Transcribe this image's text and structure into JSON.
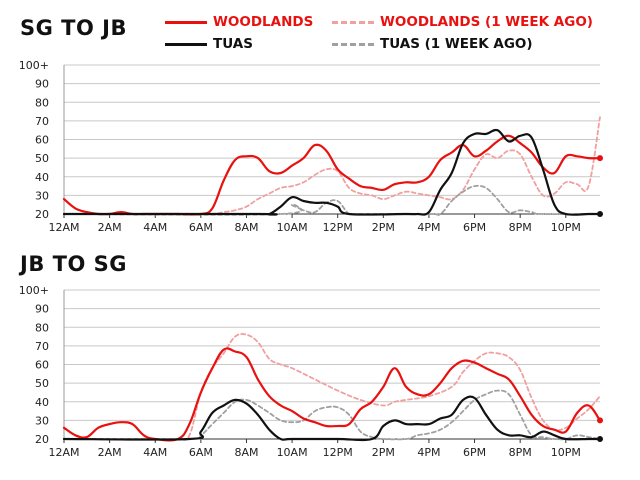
{
  "legend": {
    "woodlands": "WOODLANDS",
    "woodlands_week_ago": "WOODLANDS (1 WEEK AGO)",
    "tuas": "TUAS",
    "tuas_week_ago": "TUAS (1 WEEK AGO)"
  },
  "colors": {
    "woodlands": "#e8110f",
    "woodlands_week_ago": "#f0a0a0",
    "tuas": "#111111",
    "tuas_week_ago": "#a0a0a0",
    "grid": "#c8c8c8"
  },
  "chart_data": [
    {
      "type": "line",
      "title": "SG TO JB",
      "x_categories": [
        "12AM",
        "2AM",
        "4AM",
        "6AM",
        "8AM",
        "10AM",
        "12PM",
        "2PM",
        "4PM",
        "6PM",
        "8PM",
        "10PM"
      ],
      "y_ticks": [
        "20",
        "30",
        "40",
        "50",
        "60",
        "70",
        "80",
        "90",
        "100+"
      ],
      "ylim": [
        20,
        100
      ],
      "xlim": [
        0,
        23.5
      ],
      "series": [
        {
          "name": "WOODLANDS (1 WEEK AGO)",
          "style": "dashed",
          "color": "#f0a0a0",
          "x": [
            0,
            2,
            4,
            6,
            6.5,
            7,
            7.5,
            8,
            8.5,
            9,
            9.5,
            10,
            10.5,
            11,
            11.5,
            12,
            12.5,
            13,
            13.5,
            14,
            14.5,
            15,
            15.5,
            16,
            16.5,
            17,
            17.5,
            18,
            18.5,
            19,
            19.5,
            20,
            20.5,
            21,
            21.5,
            22,
            22.5,
            23,
            23.5
          ],
          "y": [
            20,
            20,
            20,
            20,
            20,
            21,
            22,
            24,
            28,
            31,
            34,
            35,
            37,
            41,
            44,
            43,
            34,
            31,
            30,
            28,
            30,
            32,
            31,
            30,
            29,
            28,
            33,
            44,
            52,
            50,
            54,
            52,
            40,
            30,
            31,
            37,
            36,
            35,
            72
          ]
        },
        {
          "name": "TUAS (1 WEEK AGO)",
          "style": "dashed",
          "color": "#a0a0a0",
          "x": [
            0,
            9.5,
            10,
            10.5,
            11,
            11.5,
            12,
            12.5,
            13,
            16,
            16.5,
            17,
            17.5,
            18,
            18.5,
            19,
            19.5,
            20,
            20.5,
            21,
            23.5
          ],
          "y": [
            20,
            20,
            25,
            22,
            21,
            26,
            27,
            20,
            20,
            20,
            20,
            27,
            32,
            35,
            34,
            28,
            21,
            22,
            21,
            20,
            20
          ]
        },
        {
          "name": "WOODLANDS",
          "style": "solid",
          "color": "#e8110f",
          "x": [
            0,
            0.5,
            1,
            1.5,
            2,
            2.5,
            3,
            3.5,
            4,
            5,
            6,
            6.5,
            7,
            7.5,
            8,
            8.5,
            9,
            9.5,
            10,
            10.5,
            11,
            11.5,
            12,
            12.5,
            13,
            13.5,
            14,
            14.5,
            15,
            15.5,
            16,
            16.5,
            17,
            17.5,
            18,
            18.5,
            19,
            19.5,
            20,
            20.5,
            21,
            21.5,
            22,
            22.5,
            23,
            23.5
          ],
          "y": [
            28,
            23,
            21,
            20,
            20,
            21,
            20,
            20,
            20,
            20,
            20,
            23,
            38,
            49,
            51,
            50,
            43,
            42,
            46,
            50,
            57,
            54,
            44,
            39,
            35,
            34,
            33,
            36,
            37,
            37,
            40,
            49,
            53,
            57,
            51,
            54,
            59,
            62,
            58,
            53,
            45,
            42,
            51,
            51,
            50,
            50
          ]
        },
        {
          "name": "TUAS",
          "style": "solid",
          "color": "#111111",
          "x": [
            0,
            8.5,
            9,
            9.5,
            10,
            10.5,
            11,
            11.5,
            12,
            12.5,
            15,
            15.5,
            16,
            16.5,
            17,
            17.5,
            18,
            18.5,
            19,
            19.5,
            20,
            20.5,
            21,
            21.5,
            22,
            23,
            23.5
          ],
          "y": [
            20,
            20,
            20,
            24,
            29,
            27,
            26,
            26,
            24,
            20,
            20,
            20,
            21,
            33,
            42,
            58,
            63,
            63,
            65,
            59,
            62,
            61,
            44,
            25,
            20,
            20,
            20
          ]
        }
      ]
    },
    {
      "type": "line",
      "title": "JB TO SG",
      "x_categories": [
        "12AM",
        "2AM",
        "4AM",
        "6AM",
        "8AM",
        "10AM",
        "12PM",
        "2PM",
        "4PM",
        "6PM",
        "8PM",
        "10PM"
      ],
      "y_ticks": [
        "20",
        "30",
        "40",
        "50",
        "60",
        "70",
        "80",
        "90",
        "100+"
      ],
      "ylim": [
        20,
        100
      ],
      "xlim": [
        0,
        23.5
      ],
      "series": [
        {
          "name": "WOODLANDS (1 WEEK AGO)",
          "style": "dashed",
          "color": "#f0a0a0",
          "x": [
            0,
            0.5,
            1,
            2,
            3,
            4,
            5,
            5.5,
            6,
            6.5,
            7,
            7.5,
            8,
            8.5,
            9,
            9.5,
            10,
            11,
            12,
            13,
            14,
            14.5,
            15,
            16,
            17,
            17.5,
            18,
            18.5,
            19,
            19.5,
            20,
            20.5,
            21,
            21.5,
            22,
            22.5,
            23,
            23.5
          ],
          "y": [
            20,
            20,
            20,
            20,
            20,
            20,
            20,
            22,
            45,
            58,
            66,
            75,
            76,
            72,
            63,
            60,
            58,
            52,
            46,
            41,
            38,
            40,
            41,
            43,
            48,
            56,
            62,
            66,
            66,
            64,
            57,
            42,
            30,
            25,
            26,
            31,
            36,
            43
          ]
        },
        {
          "name": "TUAS (1 WEEK AGO)",
          "style": "dashed",
          "color": "#a0a0a0",
          "x": [
            0,
            5.5,
            6,
            6.5,
            7,
            7.5,
            8,
            8.5,
            9,
            9.5,
            10,
            10.5,
            11,
            11.5,
            12,
            12.5,
            13,
            13.5,
            14,
            15,
            15.5,
            16,
            16.5,
            17,
            17.5,
            18,
            18.5,
            19,
            19.5,
            20,
            20.5,
            21,
            21.5,
            22,
            22.5,
            23,
            23.5
          ],
          "y": [
            20,
            20,
            22,
            28,
            34,
            40,
            41,
            38,
            34,
            30,
            29,
            30,
            35,
            37,
            37,
            33,
            24,
            21,
            20,
            20,
            22,
            23,
            25,
            29,
            35,
            41,
            44,
            46,
            44,
            33,
            22,
            21,
            20,
            20,
            22,
            21,
            20
          ]
        },
        {
          "name": "WOODLANDS",
          "style": "solid",
          "color": "#e8110f",
          "x": [
            0,
            0.5,
            1,
            1.5,
            2,
            2.5,
            3,
            3.5,
            4,
            5,
            5.5,
            6,
            6.5,
            7,
            7.5,
            8,
            8.5,
            9,
            9.5,
            10,
            10.5,
            11,
            11.5,
            12,
            12.5,
            13,
            13.5,
            14,
            14.5,
            15,
            15.5,
            16,
            16.5,
            17,
            17.5,
            18,
            18.5,
            19,
            19.5,
            20,
            20.5,
            21,
            21.5,
            22,
            22.5,
            23,
            23.5
          ],
          "y": [
            26,
            22,
            21,
            26,
            28,
            29,
            28,
            22,
            20,
            20,
            28,
            45,
            58,
            68,
            67,
            64,
            52,
            43,
            38,
            35,
            31,
            29,
            27,
            27,
            28,
            36,
            40,
            48,
            58,
            48,
            44,
            44,
            50,
            58,
            62,
            61,
            58,
            55,
            52,
            43,
            33,
            27,
            25,
            24,
            34,
            38,
            30
          ]
        },
        {
          "name": "TUAS",
          "style": "solid",
          "color": "#111111",
          "x": [
            0,
            5.5,
            6,
            6.5,
            7,
            7.5,
            8,
            8.5,
            9,
            9.5,
            10,
            12,
            13.5,
            14,
            14.5,
            15,
            15.5,
            16,
            16.5,
            17,
            17.5,
            18,
            18.5,
            19,
            19.5,
            20,
            20.5,
            21,
            21.5,
            22,
            23,
            23.5
          ],
          "y": [
            20,
            20,
            24,
            34,
            38,
            41,
            39,
            33,
            25,
            20,
            20,
            20,
            20,
            27,
            30,
            28,
            28,
            28,
            31,
            33,
            41,
            42,
            33,
            25,
            22,
            22,
            21,
            24,
            22,
            20,
            20,
            20
          ]
        }
      ]
    }
  ]
}
